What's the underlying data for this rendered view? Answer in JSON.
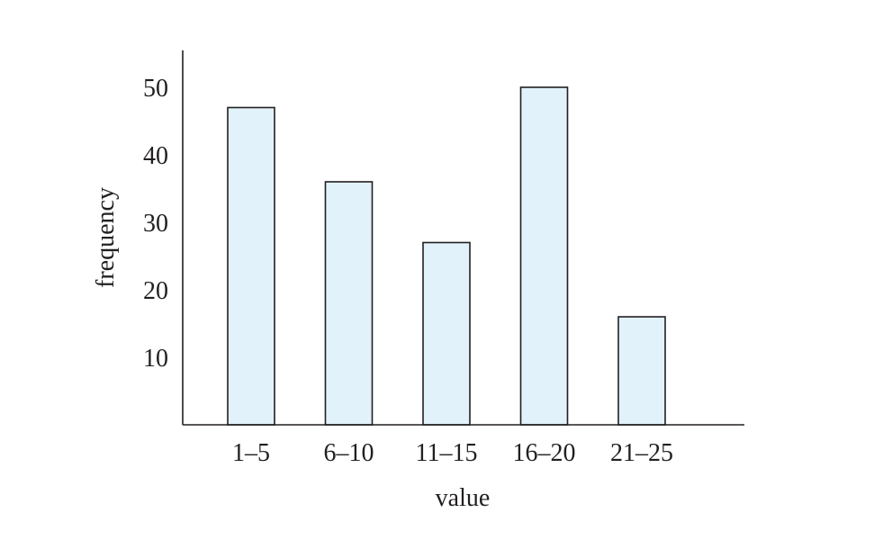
{
  "chart_data": {
    "type": "bar",
    "title": "",
    "xlabel": "value",
    "ylabel": "frequency",
    "categories": [
      "1–5",
      "6–10",
      "11–15",
      "16–20",
      "21–25"
    ],
    "values": [
      47,
      36,
      27,
      50,
      16
    ],
    "yticks": [
      10,
      20,
      30,
      40,
      50
    ],
    "ylim": [
      0,
      55
    ],
    "grid": false,
    "legend": "none",
    "colors": {
      "bar_fill": "#e1f2fa",
      "bar_stroke": "#231f20",
      "axis": "#231f20",
      "text": "#231f20"
    }
  }
}
